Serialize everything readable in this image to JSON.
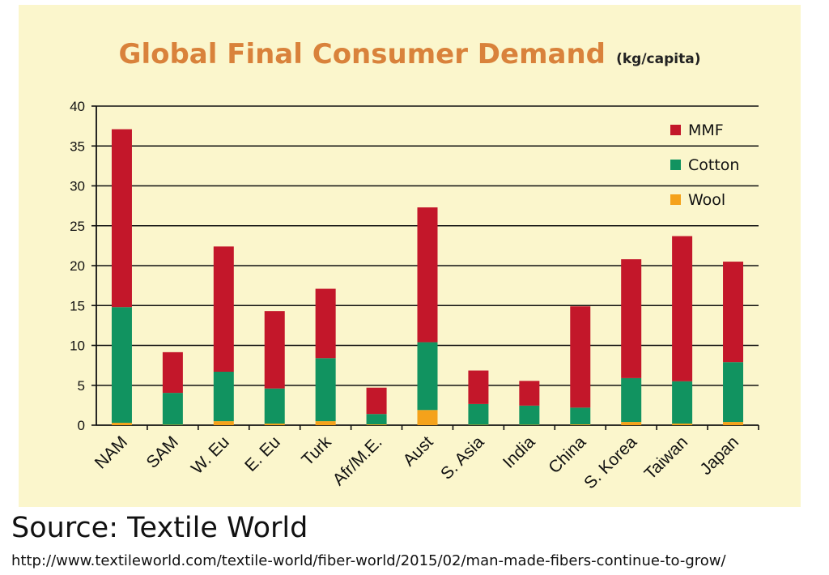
{
  "chart_data": {
    "type": "bar",
    "stacked": true,
    "title": "Global Final Consumer Demand",
    "title_unit": "(kg/capita)",
    "xlabel": "",
    "ylabel": "",
    "ylim": [
      0,
      40
    ],
    "yticks": [
      0,
      5,
      10,
      15,
      20,
      25,
      30,
      35,
      40
    ],
    "grid": true,
    "legend_position": "top-right",
    "categories": [
      "NAM",
      "SAM",
      "W. Eu",
      "E. Eu",
      "Turk",
      "Afr/M.E.",
      "Aust",
      "S. Asia",
      "India",
      "China",
      "S. Korea",
      "Taiwan",
      "Japan"
    ],
    "series": [
      {
        "name": "Wool",
        "color": "#f5a21b",
        "values": [
          0.3,
          0.05,
          0.5,
          0.2,
          0.5,
          0.1,
          1.9,
          0.05,
          0.05,
          0.1,
          0.4,
          0.2,
          0.4
        ]
      },
      {
        "name": "Cotton",
        "color": "#119360",
        "values": [
          14.5,
          4.0,
          6.2,
          4.4,
          7.9,
          1.3,
          8.5,
          2.6,
          2.4,
          2.1,
          5.5,
          5.3,
          7.5
        ]
      },
      {
        "name": "MMF",
        "color": "#c3172a",
        "values": [
          22.3,
          5.1,
          15.7,
          9.7,
          8.7,
          3.3,
          16.9,
          4.2,
          3.1,
          12.7,
          14.9,
          18.2,
          12.6
        ]
      }
    ],
    "legend_order": [
      "MMF",
      "Cotton",
      "Wool"
    ]
  },
  "source": {
    "label": "Source: Textile World",
    "url": "http://www.textileworld.com/textile-world/fiber-world/2015/02/man-made-fibers-continue-to-grow/"
  }
}
